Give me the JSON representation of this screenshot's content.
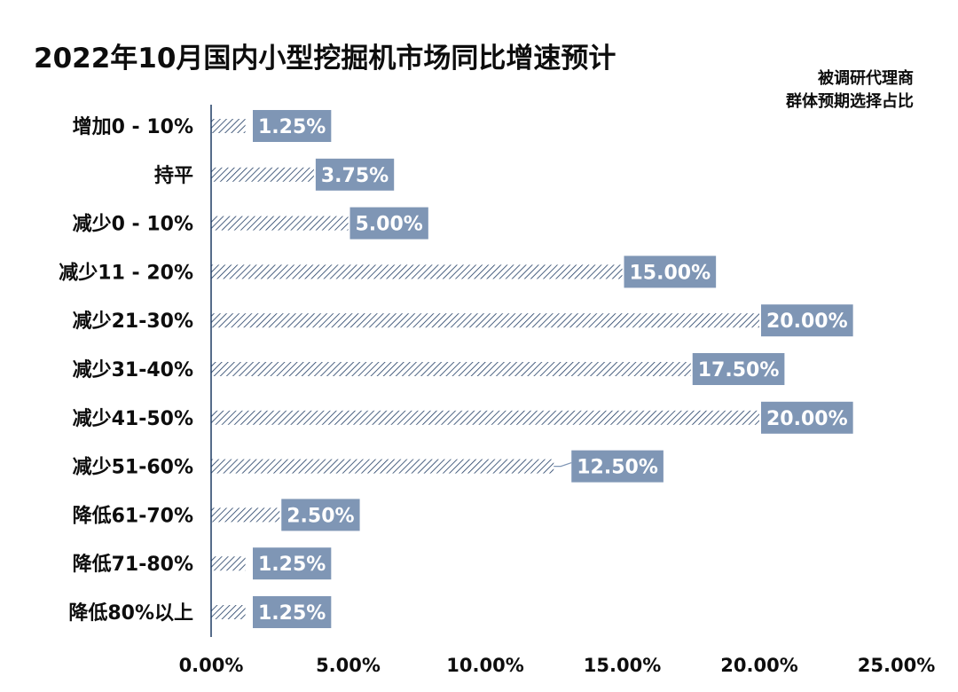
{
  "chart_data": {
    "type": "bar",
    "orientation": "horizontal",
    "title": "2022年10月国内小型挖掘机市场同比增速预计",
    "subtitle_lines": [
      "被调研代理商",
      "群体预期选择占比"
    ],
    "categories": [
      "增加0 - 10%",
      "持平",
      "减少0 - 10%",
      "减少11 - 20%",
      "减少21-30%",
      "减少31-40%",
      "减少41-50%",
      "减少51-60%",
      "降低61-70%",
      "降低71-80%",
      "降低80%以上"
    ],
    "values": [
      1.25,
      3.75,
      5.0,
      15.0,
      20.0,
      17.5,
      20.0,
      12.5,
      2.5,
      1.25,
      1.25
    ],
    "data_labels": [
      "1.25%",
      "3.75%",
      "5.00%",
      "15.00%",
      "20.00%",
      "17.50%",
      "20.00%",
      "12.50%",
      "2.50%",
      "1.25%",
      "1.25%"
    ],
    "x_ticks": [
      "0.00%",
      "5.00%",
      "10.00%",
      "15.00%",
      "20.00%",
      "25.00%"
    ],
    "xlim": [
      0,
      25
    ],
    "xlabel": "",
    "ylabel": "",
    "grid": false,
    "colors": {
      "bar_hatch": "#1f3b63",
      "label_box": "#7f96b5",
      "label_text": "#ffffff",
      "axis": "#1f3b63",
      "text": "#0d0d0d"
    }
  }
}
